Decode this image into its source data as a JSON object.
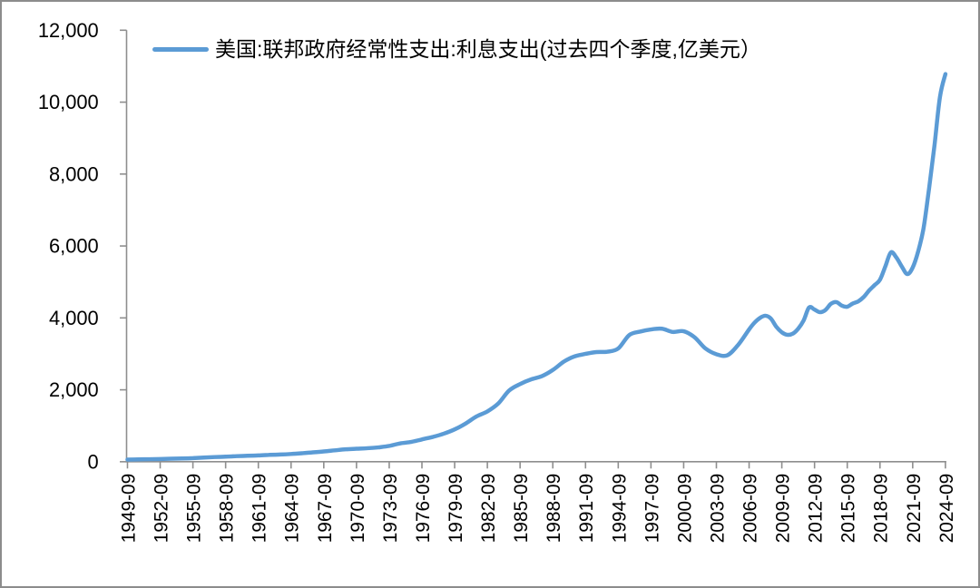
{
  "figure": {
    "background": "#ffffff",
    "border_color": "#8c8c8c",
    "axis_color": "#8e8e8e",
    "text_color": "#000000"
  },
  "legend": {
    "label": "美国:联邦政府经常性支出:利息支出(过去四个季度,亿美元）",
    "line_color": "#5B9BD5"
  },
  "chart_data": {
    "type": "line",
    "title": "",
    "xlabel": "",
    "ylabel": "",
    "grid": false,
    "smooth": true,
    "legend_position": "top",
    "line_color": "#5B9BD5",
    "line_width": 4.5,
    "ylim": [
      0,
      12000
    ],
    "y_ticks": [
      {
        "value": 0,
        "label": "0"
      },
      {
        "value": 2000,
        "label": "2,000"
      },
      {
        "value": 4000,
        "label": "4,000"
      },
      {
        "value": 6000,
        "label": "6,000"
      },
      {
        "value": 8000,
        "label": "8,000"
      },
      {
        "value": 10000,
        "label": "10,000"
      },
      {
        "value": 12000,
        "label": "12,000"
      }
    ],
    "x_range": [
      "1949-09",
      "2024-09"
    ],
    "x_ticks": [
      "1949-09",
      "1952-09",
      "1955-09",
      "1958-09",
      "1961-09",
      "1964-09",
      "1967-09",
      "1970-09",
      "1973-09",
      "1976-09",
      "1979-09",
      "1982-09",
      "1985-09",
      "1988-09",
      "1991-09",
      "1994-09",
      "1997-09",
      "2000-09",
      "2003-09",
      "2006-09",
      "2009-09",
      "2012-09",
      "2015-09",
      "2018-09",
      "2021-09",
      "2024-09"
    ],
    "series": [
      {
        "name": "美国:联邦政府经常性支出:利息支出(过去四个季度,亿美元）",
        "color": "#5B9BD5",
        "points": [
          [
            "1949-09",
            60
          ],
          [
            "1950-09",
            65
          ],
          [
            "1951-09",
            70
          ],
          [
            "1952-09",
            75
          ],
          [
            "1953-09",
            85
          ],
          [
            "1954-09",
            90
          ],
          [
            "1955-09",
            100
          ],
          [
            "1956-09",
            115
          ],
          [
            "1957-09",
            130
          ],
          [
            "1958-09",
            140
          ],
          [
            "1959-09",
            155
          ],
          [
            "1960-09",
            165
          ],
          [
            "1961-09",
            175
          ],
          [
            "1962-09",
            190
          ],
          [
            "1963-09",
            200
          ],
          [
            "1964-09",
            215
          ],
          [
            "1965-09",
            235
          ],
          [
            "1966-09",
            260
          ],
          [
            "1967-09",
            285
          ],
          [
            "1968-09",
            315
          ],
          [
            "1969-09",
            345
          ],
          [
            "1970-09",
            360
          ],
          [
            "1971-09",
            375
          ],
          [
            "1972-09",
            400
          ],
          [
            "1973-09",
            440
          ],
          [
            "1974-09",
            510
          ],
          [
            "1975-09",
            550
          ],
          [
            "1976-09",
            620
          ],
          [
            "1977-09",
            690
          ],
          [
            "1978-09",
            780
          ],
          [
            "1979-09",
            900
          ],
          [
            "1980-09",
            1060
          ],
          [
            "1981-09",
            1260
          ],
          [
            "1982-09",
            1400
          ],
          [
            "1983-09",
            1620
          ],
          [
            "1984-09",
            1980
          ],
          [
            "1985-09",
            2160
          ],
          [
            "1986-09",
            2290
          ],
          [
            "1987-09",
            2380
          ],
          [
            "1988-09",
            2550
          ],
          [
            "1989-09",
            2780
          ],
          [
            "1990-09",
            2930
          ],
          [
            "1991-09",
            3000
          ],
          [
            "1992-09",
            3050
          ],
          [
            "1993-09",
            3060
          ],
          [
            "1994-09",
            3150
          ],
          [
            "1995-09",
            3520
          ],
          [
            "1996-09",
            3620
          ],
          [
            "1997-09",
            3680
          ],
          [
            "1998-09",
            3700
          ],
          [
            "1999-09",
            3610
          ],
          [
            "2000-09",
            3630
          ],
          [
            "2001-09",
            3460
          ],
          [
            "2002-09",
            3150
          ],
          [
            "2003-09",
            2990
          ],
          [
            "2004-09",
            2960
          ],
          [
            "2005-09",
            3250
          ],
          [
            "2006-09",
            3680
          ],
          [
            "2007-03",
            3870
          ],
          [
            "2007-09",
            4000
          ],
          [
            "2008-03",
            4060
          ],
          [
            "2008-09",
            3980
          ],
          [
            "2009-03",
            3750
          ],
          [
            "2009-09",
            3600
          ],
          [
            "2010-03",
            3530
          ],
          [
            "2010-09",
            3560
          ],
          [
            "2011-03",
            3700
          ],
          [
            "2011-09",
            3930
          ],
          [
            "2012-03",
            4290
          ],
          [
            "2012-09",
            4230
          ],
          [
            "2013-03",
            4160
          ],
          [
            "2013-09",
            4220
          ],
          [
            "2014-03",
            4390
          ],
          [
            "2014-09",
            4440
          ],
          [
            "2015-03",
            4340
          ],
          [
            "2015-09",
            4310
          ],
          [
            "2016-03",
            4400
          ],
          [
            "2016-09",
            4460
          ],
          [
            "2017-03",
            4580
          ],
          [
            "2017-09",
            4760
          ],
          [
            "2018-03",
            4910
          ],
          [
            "2018-09",
            5060
          ],
          [
            "2019-03",
            5440
          ],
          [
            "2019-09",
            5820
          ],
          [
            "2020-03",
            5680
          ],
          [
            "2020-09",
            5430
          ],
          [
            "2021-03",
            5220
          ],
          [
            "2021-09",
            5400
          ],
          [
            "2022-03",
            5850
          ],
          [
            "2022-09",
            6500
          ],
          [
            "2023-03",
            7600
          ],
          [
            "2023-09",
            8800
          ],
          [
            "2024-03",
            10150
          ],
          [
            "2024-09",
            10780
          ]
        ]
      }
    ]
  }
}
